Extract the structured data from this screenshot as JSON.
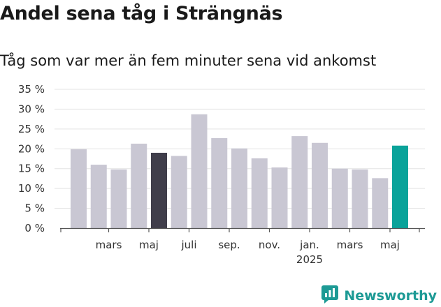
{
  "header": {
    "title": "Andel sena tåg i Strängnäs",
    "subtitle": "Tåg som var mer än fem minuter sena vid ankomst"
  },
  "brand": {
    "name": "Newsworthy",
    "logo_icon": "newsworthy-logo-icon",
    "color": "#1d9a95"
  },
  "chart_data": {
    "type": "bar",
    "title": "Andel sena tåg i Strängnäs",
    "subtitle": "Tåg som var mer än fem minuter sena vid ankomst",
    "xlabel": "",
    "ylabel": "",
    "ylim": [
      0,
      35
    ],
    "yticks": [
      0,
      5,
      10,
      15,
      20,
      25,
      30,
      35
    ],
    "ytick_labels": [
      "0 %",
      "5 %",
      "10 %",
      "15 %",
      "20 %",
      "25 %",
      "30 %",
      "35 %"
    ],
    "grid": true,
    "legend": "none",
    "categories": [
      "2024-02",
      "2024-03",
      "2024-04",
      "2024-05",
      "2024-06",
      "2024-07",
      "2024-08",
      "2024-09",
      "2024-10",
      "2024-11",
      "2024-12",
      "2025-01",
      "2025-02",
      "2025-03",
      "2025-04",
      "2025-05",
      "2025-06"
    ],
    "values": [
      19.9,
      16.0,
      14.8,
      21.3,
      19.0,
      18.2,
      28.7,
      22.7,
      20.1,
      17.6,
      15.3,
      23.2,
      21.5,
      15.0,
      14.8,
      12.6,
      20.8
    ],
    "colors": {
      "default": "#c9c7d3",
      "highlight_dark": "#403e4b",
      "highlight_latest": "#0aa39a"
    },
    "bar_color_roles": [
      "default",
      "default",
      "default",
      "default",
      "highlight_dark",
      "default",
      "default",
      "default",
      "default",
      "default",
      "default",
      "default",
      "default",
      "default",
      "default",
      "default",
      "highlight_latest"
    ],
    "x_tick_labels": [
      {
        "after_index": 1,
        "label": "mars"
      },
      {
        "after_index": 3,
        "label": "maj"
      },
      {
        "after_index": 5,
        "label": "juli"
      },
      {
        "after_index": 7,
        "label": "sep."
      },
      {
        "after_index": 9,
        "label": "nov."
      },
      {
        "after_index": 11,
        "label": "jan.",
        "sublabel": "2025"
      },
      {
        "after_index": 13,
        "label": "mars"
      },
      {
        "after_index": 15,
        "label": "maj"
      }
    ]
  }
}
